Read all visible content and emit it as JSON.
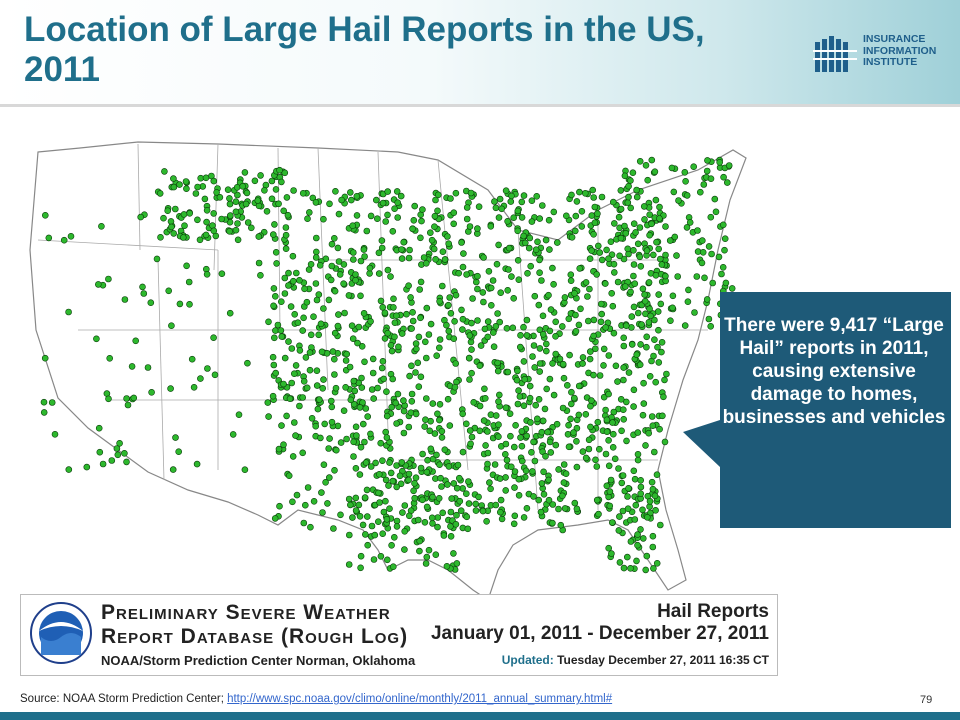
{
  "title": "Location of Large Hail Reports in the US, 2011",
  "logo": {
    "lines": [
      "INSURANCE",
      "INFORMATION",
      "INSTITUTE"
    ]
  },
  "map": {
    "legend": {
      "title_line1": "Preliminary Severe Weather",
      "title_line2": "Report Database (Rough Log)",
      "center": "NOAA/Storm Prediction Center   Norman, Oklahoma",
      "report_type": "Hail Reports",
      "date_range": "January 01, 2011 - December 27, 2011",
      "updated_label": "Updated:",
      "updated_value": "Tuesday December 27, 2011 16:35 CT"
    },
    "colors": {
      "marker": "#2db82d",
      "marker_stroke": "#0a3d0a",
      "state_line": "#888888"
    }
  },
  "callout": {
    "text": "There were 9,417 “Large Hail” reports in 2011, causing extensive damage to homes, businesses and vehicles",
    "color": "#1e5a78"
  },
  "source": {
    "label": "Source: NOAA Storm Prediction Center;",
    "url": "http://www.spc.noaa.gov/climo/online/monthly/2011_annual_summary.html#"
  },
  "page_number": "79"
}
